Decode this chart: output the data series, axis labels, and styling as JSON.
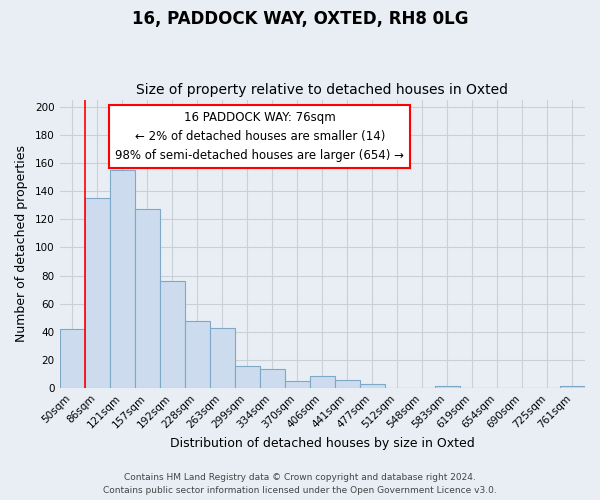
{
  "title": "16, PADDOCK WAY, OXTED, RH8 0LG",
  "subtitle": "Size of property relative to detached houses in Oxted",
  "xlabel": "Distribution of detached houses by size in Oxted",
  "ylabel": "Number of detached properties",
  "bar_labels": [
    "50sqm",
    "86sqm",
    "121sqm",
    "157sqm",
    "192sqm",
    "228sqm",
    "263sqm",
    "299sqm",
    "334sqm",
    "370sqm",
    "406sqm",
    "441sqm",
    "477sqm",
    "512sqm",
    "548sqm",
    "583sqm",
    "619sqm",
    "654sqm",
    "690sqm",
    "725sqm",
    "761sqm"
  ],
  "bar_values": [
    42,
    135,
    155,
    127,
    76,
    48,
    43,
    16,
    14,
    5,
    9,
    6,
    3,
    0,
    0,
    2,
    0,
    0,
    0,
    0,
    2
  ],
  "bar_color": "#ccdcee",
  "bar_edge_color": "#7da8c8",
  "red_line_x": 1,
  "annotation_title": "16 PADDOCK WAY: 76sqm",
  "annotation_line1": "← 2% of detached houses are smaller (14)",
  "annotation_line2": "98% of semi-detached houses are larger (654) →",
  "annotation_box_edge": "red",
  "ylim": [
    0,
    205
  ],
  "yticks": [
    0,
    20,
    40,
    60,
    80,
    100,
    120,
    140,
    160,
    180,
    200
  ],
  "footer_line1": "Contains HM Land Registry data © Crown copyright and database right 2024.",
  "footer_line2": "Contains public sector information licensed under the Open Government Licence v3.0.",
  "background_color": "#e8eef4",
  "plot_bg_color": "#e8eef4",
  "grid_color": "#c8d0d8",
  "title_fontsize": 12,
  "subtitle_fontsize": 10,
  "axis_label_fontsize": 9,
  "tick_fontsize": 7.5,
  "annotation_fontsize": 8.5,
  "footer_fontsize": 6.5
}
